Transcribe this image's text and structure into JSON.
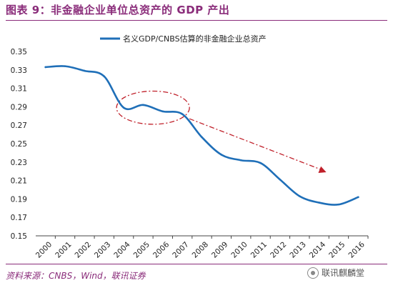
{
  "header": {
    "title": "图表 9：非金融企业单位总资产的 GDP 产出"
  },
  "footer": {
    "source": "资料来源：CNBS，Wind，联讯证券",
    "watermark": "联讯麒麟堂",
    "watermark_icon": "wechat-icon"
  },
  "colors": {
    "title": "#8a2c7a",
    "series": "#1f6fb8",
    "annotation": "#c0202a"
  },
  "chart_data": {
    "type": "line",
    "legend_position": "top-center",
    "grid": false,
    "x": [
      "2000",
      "2001",
      "2002",
      "2003",
      "2004",
      "2005",
      "2006",
      "2007",
      "2008",
      "2009",
      "2010",
      "2011",
      "2012",
      "2013",
      "2014",
      "2015",
      "2016"
    ],
    "series": [
      {
        "name": "名义GDP/CNBS估算的非金融企业总资产",
        "values": [
          0.333,
          0.334,
          0.329,
          0.323,
          0.289,
          0.292,
          0.285,
          0.282,
          0.257,
          0.238,
          0.232,
          0.229,
          0.211,
          0.193,
          0.186,
          0.184,
          0.192
        ]
      }
    ],
    "ylim": [
      0.15,
      0.35
    ],
    "yticks": [
      "0.15",
      "0.17",
      "0.19",
      "0.21",
      "0.23",
      "0.25",
      "0.27",
      "0.29",
      "0.31",
      "0.33",
      "0.35"
    ],
    "annotations": [
      {
        "type": "ellipse",
        "x_range": [
          "2004",
          "2007"
        ],
        "y_range": [
          0.271,
          0.307
        ]
      },
      {
        "type": "arrow",
        "from": {
          "x": "2007",
          "y": 0.277
        },
        "to": {
          "x": "2014",
          "y": 0.219
        }
      }
    ]
  }
}
